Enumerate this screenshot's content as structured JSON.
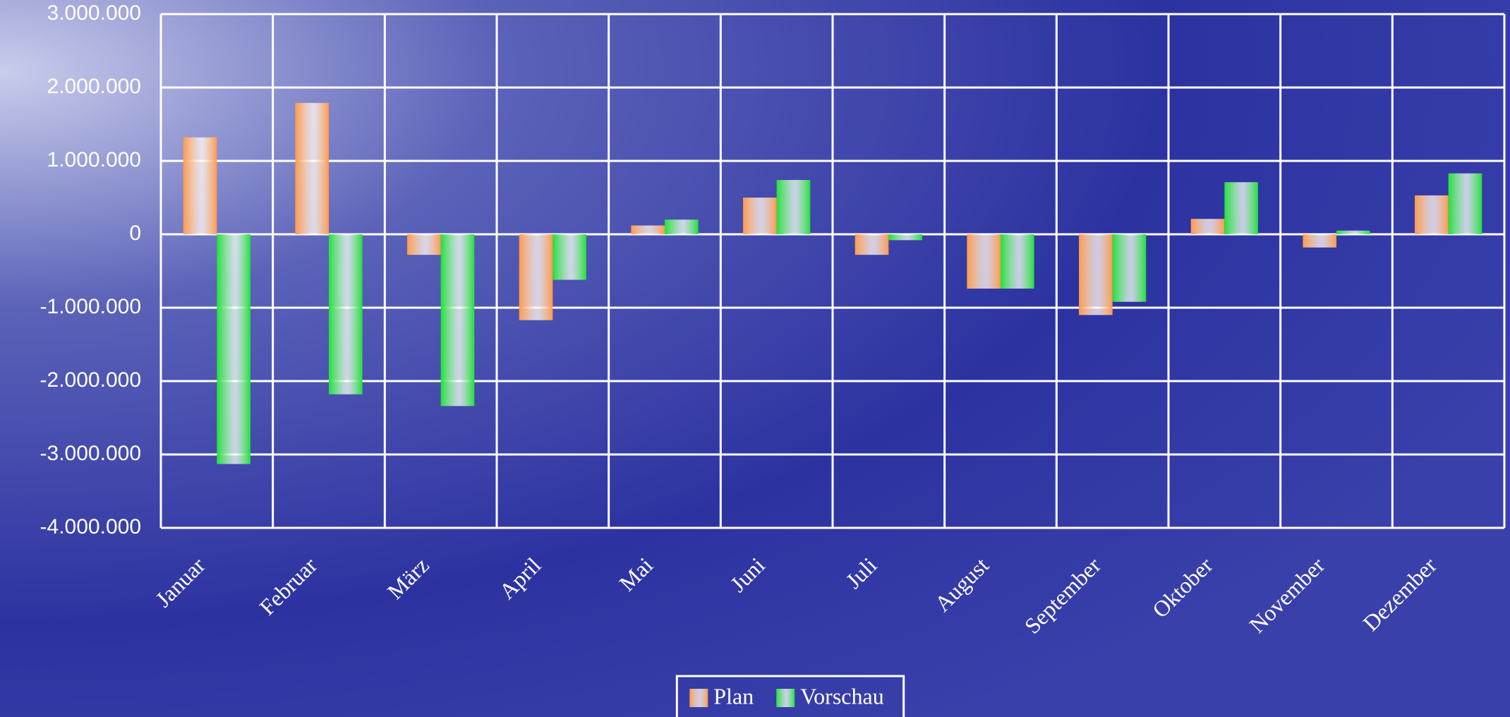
{
  "chart_data": {
    "type": "bar",
    "categories": [
      "Januar",
      "Februar",
      "März",
      "April",
      "Mai",
      "Juni",
      "Juli",
      "August",
      "September",
      "Oktober",
      "November",
      "Dezember"
    ],
    "series": [
      {
        "name": "Plan",
        "color": "#ff9a4d",
        "values": [
          1320000,
          1790000,
          -280000,
          -1170000,
          120000,
          500000,
          -280000,
          -740000,
          -1100000,
          210000,
          -180000,
          530000
        ]
      },
      {
        "name": "Vorschau",
        "color": "#22e03a",
        "values": [
          -3130000,
          -2180000,
          -2340000,
          -620000,
          200000,
          740000,
          -80000,
          -740000,
          -920000,
          710000,
          50000,
          830000
        ]
      }
    ],
    "ylim": [
      -4000000,
      3000000
    ],
    "yticks": [
      {
        "value": -4000000,
        "label": "-4.000.000"
      },
      {
        "value": -3000000,
        "label": "-3.000.000"
      },
      {
        "value": -2000000,
        "label": "-2.000.000"
      },
      {
        "value": -1000000,
        "label": "-1.000.000"
      },
      0,
      {
        "value": 1000000,
        "label": "1.000.000"
      },
      {
        "value": 2000000,
        "label": "2.000.000"
      },
      {
        "value": 3000000,
        "label": "3.000.000"
      }
    ],
    "grid": true,
    "legend": "bottom"
  }
}
